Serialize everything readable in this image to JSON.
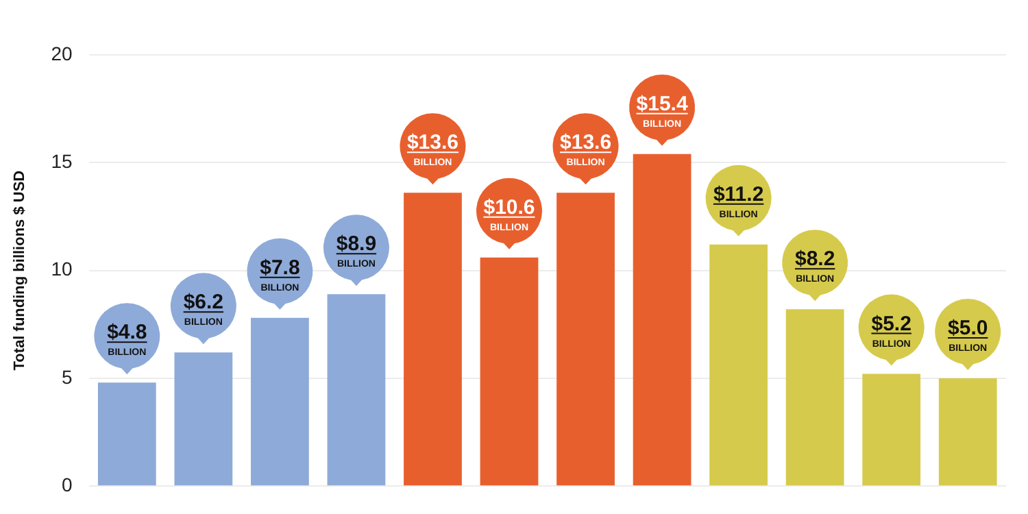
{
  "chart_data": {
    "type": "bar",
    "ylabel": "Total funding billions $ USD",
    "categories": [
      null,
      null,
      null,
      null,
      null,
      null,
      null,
      null,
      null,
      null,
      null,
      null
    ],
    "values": [
      4.8,
      6.2,
      7.8,
      8.9,
      13.6,
      10.6,
      13.6,
      15.4,
      11.2,
      8.2,
      5.2,
      5.0
    ],
    "colors": [
      "#8eaad8",
      "#8eaad8",
      "#8eaad8",
      "#8eaad8",
      "#e85f2e",
      "#e85f2e",
      "#e85f2e",
      "#e85f2e",
      "#d6ca4c",
      "#d6ca4c",
      "#d6ca4c",
      "#d6ca4c"
    ],
    "value_labels": [
      "$4.8 BILLION",
      "$6.2 BILLION",
      "$7.8 BILLION",
      "$8.9 BILLION",
      "$13.6 BILLION",
      "$10.6 BILLION",
      "$13.6 BILLION",
      "$15.4 BILLION",
      "$11.2 BILLION",
      "$8.2 BILLION",
      "$5.2 BILLION",
      "$5.0 BILLION"
    ],
    "ylim": [
      0,
      20
    ],
    "yticks": [
      0,
      5,
      10,
      15,
      20
    ],
    "grid": "y"
  }
}
